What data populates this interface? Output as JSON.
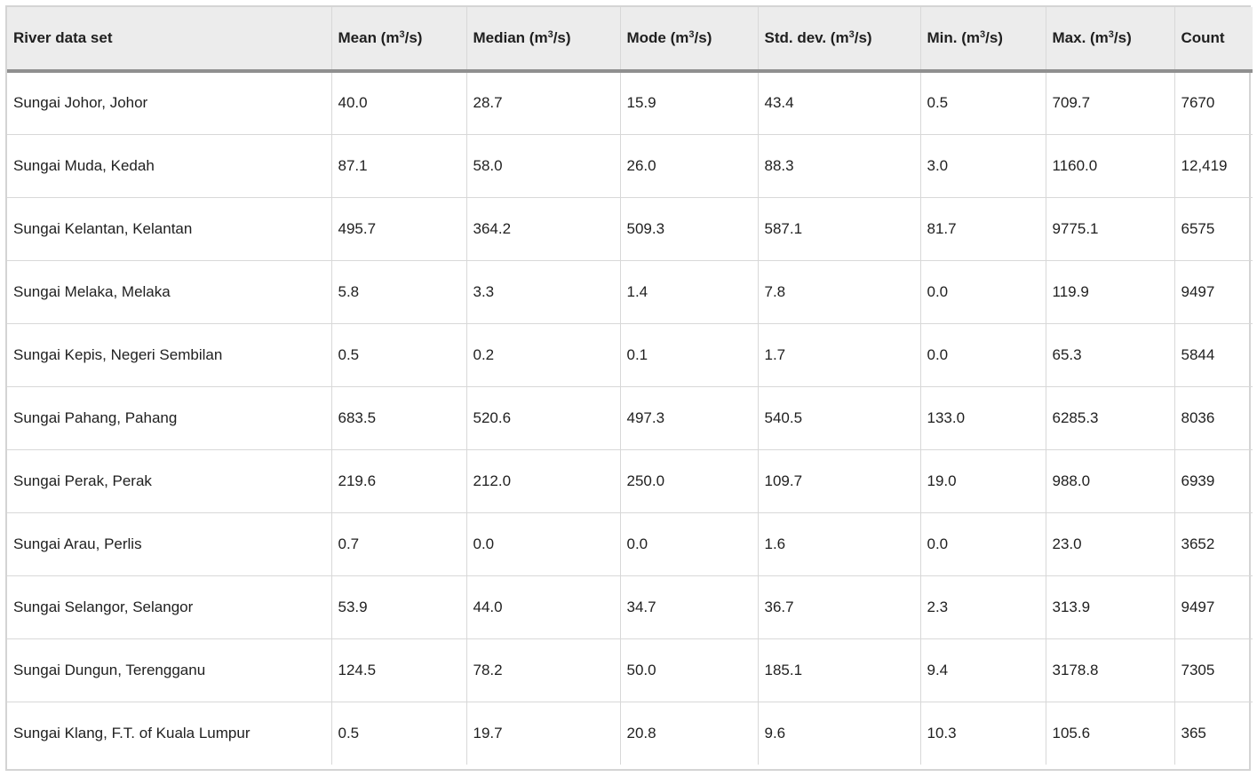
{
  "table": {
    "headers": [
      {
        "pre": "River data set",
        "sup": "",
        "post": ""
      },
      {
        "pre": "Mean (m",
        "sup": "3",
        "post": "/s)"
      },
      {
        "pre": "Median (m",
        "sup": "3",
        "post": "/s)"
      },
      {
        "pre": "Mode (m",
        "sup": "3",
        "post": "/s)"
      },
      {
        "pre": "Std. dev. (m",
        "sup": "3",
        "post": "/s)"
      },
      {
        "pre": "Min. (m",
        "sup": "3",
        "post": "/s)"
      },
      {
        "pre": "Max. (m",
        "sup": "3",
        "post": "/s)"
      },
      {
        "pre": "Count",
        "sup": "",
        "post": ""
      }
    ],
    "rows": [
      [
        "Sungai Johor, Johor",
        "40.0",
        "28.7",
        "15.9",
        "43.4",
        "0.5",
        "709.7",
        "7670"
      ],
      [
        "Sungai Muda, Kedah",
        "87.1",
        "58.0",
        "26.0",
        "88.3",
        "3.0",
        "1160.0",
        "12,419"
      ],
      [
        "Sungai Kelantan, Kelantan",
        "495.7",
        "364.2",
        "509.3",
        "587.1",
        "81.7",
        "9775.1",
        "6575"
      ],
      [
        "Sungai Melaka, Melaka",
        "5.8",
        "3.3",
        "1.4",
        "7.8",
        "0.0",
        "119.9",
        "9497"
      ],
      [
        "Sungai Kepis, Negeri Sembilan",
        "0.5",
        "0.2",
        "0.1",
        "1.7",
        "0.0",
        "65.3",
        "5844"
      ],
      [
        "Sungai Pahang, Pahang",
        "683.5",
        "520.6",
        "497.3",
        "540.5",
        "133.0",
        "6285.3",
        "8036"
      ],
      [
        "Sungai Perak, Perak",
        "219.6",
        "212.0",
        "250.0",
        "109.7",
        "19.0",
        "988.0",
        "6939"
      ],
      [
        "Sungai Arau, Perlis",
        "0.7",
        "0.0",
        "0.0",
        "1.6",
        "0.0",
        "23.0",
        "3652"
      ],
      [
        "Sungai Selangor, Selangor",
        "53.9",
        "44.0",
        "34.7",
        "36.7",
        "2.3",
        "313.9",
        "9497"
      ],
      [
        "Sungai Dungun, Terengganu",
        "124.5",
        "78.2",
        "50.0",
        "185.1",
        "9.4",
        "3178.8",
        "7305"
      ],
      [
        "Sungai Klang, F.T. of Kuala Lumpur",
        "0.5",
        "19.7",
        "20.8",
        "9.6",
        "10.3",
        "105.6",
        "365"
      ]
    ]
  }
}
